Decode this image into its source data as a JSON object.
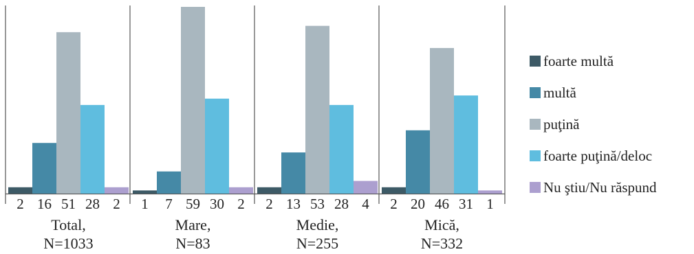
{
  "chart_data": {
    "type": "bar",
    "title": "",
    "xlabel": "",
    "ylabel": "",
    "ylim": [
      0,
      59
    ],
    "legend_position": "right",
    "grid": false,
    "groups": [
      {
        "name": "Total,",
        "n": "N=1033"
      },
      {
        "name": "Mare,",
        "n": "N=83"
      },
      {
        "name": "Medie,",
        "n": "N=255"
      },
      {
        "name": "Mică,",
        "n": "N=332"
      }
    ],
    "series": [
      {
        "name": "foarte multă",
        "color": "#3d5a66",
        "values": [
          2,
          1,
          2,
          2
        ]
      },
      {
        "name": "multă",
        "color": "#4589a6",
        "values": [
          16,
          7,
          13,
          20
        ]
      },
      {
        "name": "puţină",
        "color": "#a9b7bf",
        "values": [
          51,
          59,
          53,
          46
        ]
      },
      {
        "name": "foarte puţină/deloc",
        "color": "#5fbddf",
        "values": [
          28,
          30,
          28,
          31
        ]
      },
      {
        "name": "Nu ştiu/Nu răspund",
        "color": "#ac9fcf",
        "values": [
          2,
          2,
          4,
          1
        ]
      }
    ]
  }
}
